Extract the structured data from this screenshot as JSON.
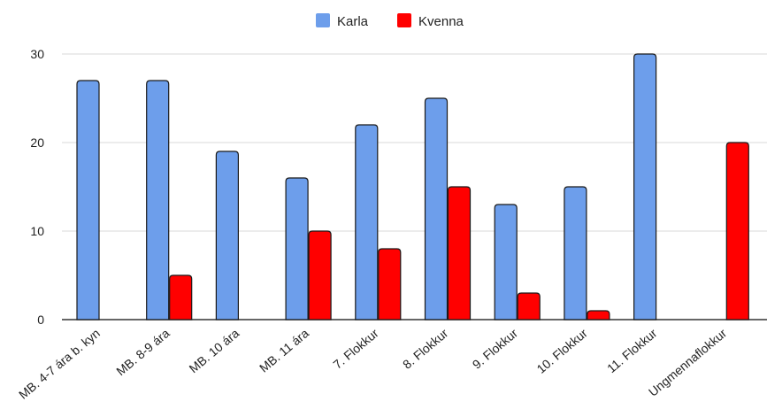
{
  "chart_data": {
    "type": "bar",
    "categories": [
      "MB. 4-7 ára b. kyn",
      "MB. 8-9 ára",
      "MB. 10 ára",
      "MB. 11 ára",
      "7. Flokkur",
      "8. Flokkur",
      "9. Flokkur",
      "10. Flokkur",
      "11. Flokkur",
      "Ungmennaflokkur"
    ],
    "series": [
      {
        "name": "Karla",
        "color": "#6d9eeb",
        "values": [
          27,
          27,
          19,
          16,
          22,
          25,
          13,
          15,
          30,
          0
        ]
      },
      {
        "name": "Kvenna",
        "color": "#ff0000",
        "values": [
          0,
          5,
          0,
          10,
          8,
          15,
          3,
          1,
          0,
          20
        ]
      }
    ],
    "ylim": [
      0,
      30
    ],
    "yticks": [
      0,
      10,
      20,
      30
    ],
    "grid": true,
    "legend_position": "top-center",
    "title": "",
    "xlabel": "",
    "ylabel": ""
  }
}
